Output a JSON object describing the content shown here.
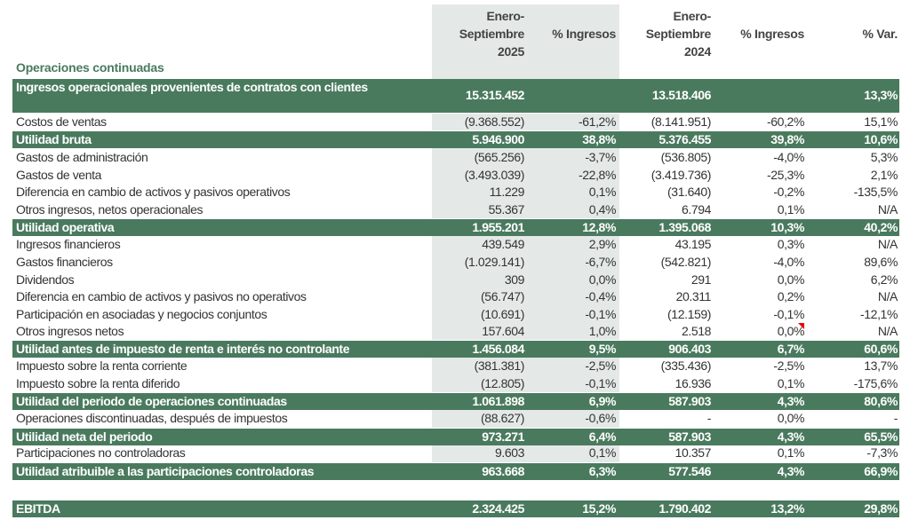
{
  "columns": [
    {
      "label": "Enero-\nSeptiembre\n2025"
    },
    {
      "label": "% Ingresos"
    },
    {
      "label": "Enero-\nSeptiembre\n2024"
    },
    {
      "label": "% Ingresos"
    },
    {
      "label": "% Var."
    }
  ],
  "section_title": "Operaciones continuadas",
  "colors": {
    "total_row": "#4a7a5e",
    "highlight_column": "#e4e9e8",
    "section_title": "#4a7a5e"
  },
  "rows": [
    {
      "label": "Ingresos operacionales provenientes de contratos con clientes",
      "total": true,
      "values": [
        "15.315.452",
        "",
        "13.518.406",
        "",
        "13,3%"
      ]
    },
    {
      "label": "Costos de ventas",
      "total": false,
      "values": [
        "(9.368.552)",
        "-61,2%",
        "(8.141.951)",
        "-60,2%",
        "15,1%"
      ]
    },
    {
      "label": "Utilidad bruta",
      "total": true,
      "values": [
        "5.946.900",
        "38,8%",
        "5.376.455",
        "39,8%",
        "10,6%"
      ]
    },
    {
      "label": "Gastos de administración",
      "total": false,
      "values": [
        "(565.256)",
        "-3,7%",
        "(536.805)",
        "-4,0%",
        "5,3%"
      ]
    },
    {
      "label": "Gastos de venta",
      "total": false,
      "values": [
        "(3.493.039)",
        "-22,8%",
        "(3.419.736)",
        "-25,3%",
        "2,1%"
      ]
    },
    {
      "label": "Diferencia en cambio de activos y pasivos operativos",
      "total": false,
      "values": [
        "11.229",
        "0,1%",
        "(31.640)",
        "-0,2%",
        "-135,5%"
      ]
    },
    {
      "label": "Otros ingresos, netos operacionales",
      "total": false,
      "values": [
        "55.367",
        "0,4%",
        "6.794",
        "0,1%",
        "N/A"
      ]
    },
    {
      "label": "Utilidad operativa",
      "total": true,
      "values": [
        "1.955.201",
        "12,8%",
        "1.395.068",
        "10,3%",
        "40,2%"
      ]
    },
    {
      "label": "Ingresos financieros",
      "total": false,
      "values": [
        "439.549",
        "2,9%",
        "43.195",
        "0,3%",
        "N/A"
      ]
    },
    {
      "label": "Gastos financieros",
      "total": false,
      "values": [
        "(1.029.141)",
        "-6,7%",
        "(542.821)",
        "-4,0%",
        "89,6%"
      ]
    },
    {
      "label": "Dividendos",
      "total": false,
      "values": [
        "309",
        "0,0%",
        "291",
        "0,0%",
        "6,2%"
      ]
    },
    {
      "label": "Diferencia en cambio de activos y pasivos no operativos",
      "total": false,
      "values": [
        "(56.747)",
        "-0,4%",
        "20.311",
        "0,2%",
        "N/A"
      ]
    },
    {
      "label": "Participación en asociadas y negocios conjuntos",
      "total": false,
      "values": [
        "(10.691)",
        "-0,1%",
        "(12.159)",
        "-0,1%",
        "-12,1%"
      ]
    },
    {
      "label": "Otros ingresos netos",
      "total": false,
      "values": [
        "157.604",
        "1,0%",
        "2.518",
        "0,0%",
        "N/A"
      ]
    },
    {
      "label": "Utilidad antes de impuesto de renta e interés no controlante",
      "total": true,
      "values": [
        "1.456.084",
        "9,5%",
        "906.403",
        "6,7%",
        "60,6%"
      ]
    },
    {
      "label": "Impuesto sobre la renta corriente",
      "total": false,
      "values": [
        "(381.381)",
        "-2,5%",
        "(335.436)",
        "-2,5%",
        "13,7%"
      ]
    },
    {
      "label": "Impuesto sobre la renta diferido",
      "total": false,
      "values": [
        "(12.805)",
        "-0,1%",
        "16.936",
        "0,1%",
        "-175,6%"
      ]
    },
    {
      "label": "Utilidad del periodo de operaciones continuadas",
      "total": true,
      "values": [
        "1.061.898",
        "6,9%",
        "587.903",
        "4,3%",
        "80,6%"
      ]
    },
    {
      "label": "Operaciones discontinuadas, después de impuestos",
      "total": false,
      "values": [
        "(88.627)",
        "-0,6%",
        "-",
        "0,0%",
        "-"
      ]
    },
    {
      "label": "Utilidad neta del periodo",
      "total": true,
      "values": [
        "973.271",
        "6,4%",
        "587.903",
        "4,3%",
        "65,5%"
      ]
    },
    {
      "label": "Participaciones no controladoras",
      "total": false,
      "values": [
        "9.603",
        "0,1%",
        "10.357",
        "0,1%",
        "-7,3%"
      ]
    },
    {
      "label": "Utilidad atribuible a las participaciones controladoras",
      "total": true,
      "values": [
        "963.668",
        "6,3%",
        "577.546",
        "4,3%",
        "66,9%"
      ]
    },
    {
      "label": "EBITDA",
      "total": true,
      "values": [
        "2.324.425",
        "15,2%",
        "1.790.402",
        "13,2%",
        "29,8%"
      ]
    }
  ]
}
